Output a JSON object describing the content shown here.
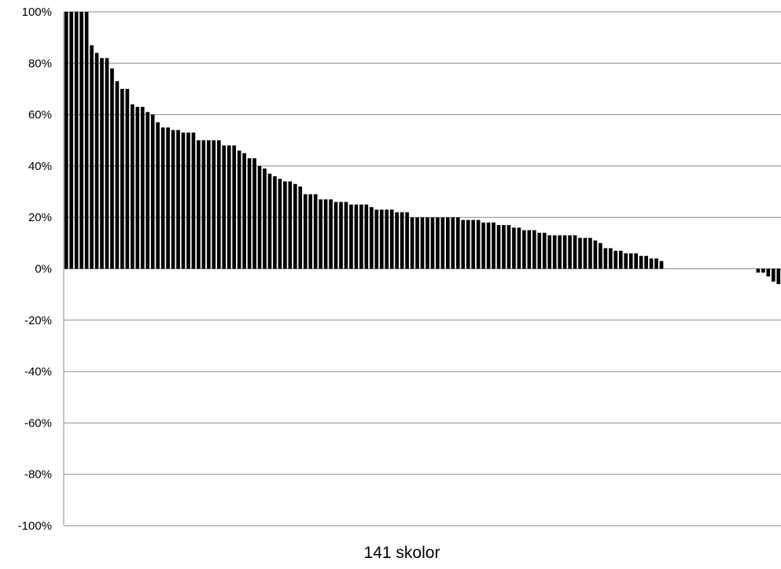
{
  "chart_data": {
    "type": "bar",
    "title": "",
    "xlabel": "141 skolor",
    "ylabel": "",
    "ylim": [
      -100,
      100
    ],
    "yticks": [
      100,
      80,
      60,
      40,
      20,
      0,
      -20,
      -40,
      -60,
      -80,
      -100
    ],
    "ytick_labels": [
      "100%",
      "80%",
      "60%",
      "40%",
      "20%",
      "0%",
      "-20%",
      "-40%",
      "-60%",
      "-80%",
      "-100%"
    ],
    "grid": true,
    "legend": "none",
    "bar_color": "#000000",
    "values": [
      100,
      100,
      100,
      100,
      100,
      87,
      84,
      82,
      82,
      78,
      73,
      70,
      70,
      64,
      63,
      63,
      61,
      60,
      57,
      55,
      55,
      54,
      54,
      53,
      53,
      53,
      50,
      50,
      50,
      50,
      50,
      48,
      48,
      48,
      46,
      45,
      43,
      43,
      40,
      39,
      37,
      36,
      35,
      34,
      34,
      33,
      32,
      29,
      29,
      29,
      27,
      27,
      27,
      26,
      26,
      26,
      25,
      25,
      25,
      25,
      24,
      23,
      23,
      23,
      23,
      22,
      22,
      22,
      20,
      20,
      20,
      20,
      20,
      20,
      20,
      20,
      20,
      20,
      19,
      19,
      19,
      19,
      18,
      18,
      18,
      17,
      17,
      17,
      16,
      16,
      15,
      15,
      15,
      14,
      14,
      13,
      13,
      13,
      13,
      13,
      13,
      12,
      12,
      12,
      11,
      10,
      8,
      8,
      7,
      7,
      6,
      6,
      6,
      5,
      5,
      4,
      4,
      3,
      0,
      0,
      0,
      0,
      0,
      0,
      0,
      0,
      0,
      0,
      0,
      0,
      0,
      0,
      0,
      0,
      0,
      0,
      -1.5,
      -1.5,
      -3,
      -5,
      -6
    ]
  }
}
